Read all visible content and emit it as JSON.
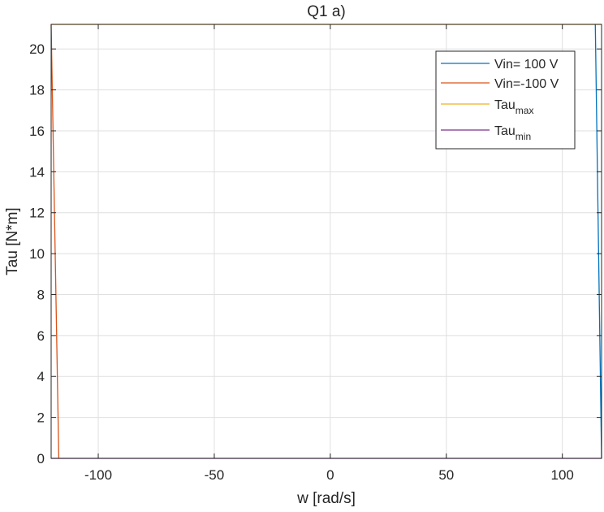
{
  "chart_data": {
    "type": "line",
    "title": "Q1 a)",
    "xlabel": "w [rad/s]",
    "ylabel": "Tau [N*m]",
    "xlim": [
      -120.3,
      116.9
    ],
    "ylim": [
      0,
      21.2
    ],
    "xticks": [
      -100,
      -50,
      0,
      50,
      100
    ],
    "xtick_labels": [
      "-100",
      "-50",
      "0",
      "50",
      "100"
    ],
    "yticks": [
      0,
      2,
      4,
      6,
      8,
      10,
      12,
      14,
      16,
      18,
      20
    ],
    "ytick_labels": [
      "0",
      "2",
      "4",
      "6",
      "8",
      "10",
      "12",
      "14",
      "16",
      "18",
      "20"
    ],
    "grid": true,
    "legend_position": "top-right",
    "series": [
      {
        "name": "Vin= 100 V",
        "color": "#0072BD",
        "x": [
          114.2,
          116.9
        ],
        "y": [
          21.2,
          0
        ]
      },
      {
        "name": "Vin=-100 V",
        "color": "#D95319",
        "x": [
          -120.3,
          -117.0
        ],
        "y": [
          21.2,
          0
        ]
      },
      {
        "name": "Tau",
        "name_sub": "max",
        "color": "#EDB120",
        "x": [
          -120.3,
          116.9
        ],
        "y": [
          21.2,
          21.2
        ]
      },
      {
        "name": "Tau",
        "name_sub": "min",
        "color": "#7E2F8E",
        "x": [
          -120.3,
          116.9
        ],
        "y": [
          0,
          0
        ]
      }
    ]
  }
}
